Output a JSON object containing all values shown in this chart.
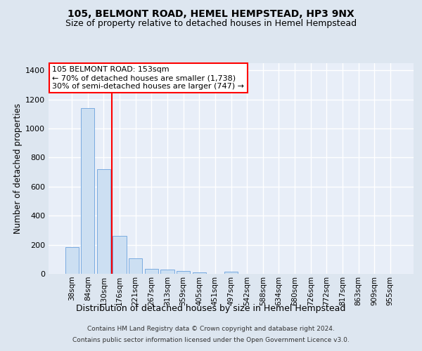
{
  "title1": "105, BELMONT ROAD, HEMEL HEMPSTEAD, HP3 9NX",
  "title2": "Size of property relative to detached houses in Hemel Hempstead",
  "xlabel": "Distribution of detached houses by size in Hemel Hempstead",
  "ylabel": "Number of detached properties",
  "footer1": "Contains HM Land Registry data © Crown copyright and database right 2024.",
  "footer2": "Contains public sector information licensed under the Open Government Licence v3.0.",
  "categories": [
    "38sqm",
    "84sqm",
    "130sqm",
    "176sqm",
    "221sqm",
    "267sqm",
    "313sqm",
    "359sqm",
    "405sqm",
    "451sqm",
    "497sqm",
    "542sqm",
    "588sqm",
    "634sqm",
    "680sqm",
    "726sqm",
    "772sqm",
    "817sqm",
    "863sqm",
    "909sqm",
    "955sqm"
  ],
  "values": [
    185,
    1140,
    720,
    260,
    105,
    32,
    28,
    18,
    10,
    0,
    13,
    0,
    0,
    0,
    0,
    0,
    0,
    0,
    0,
    0,
    0
  ],
  "bar_color": "#ccdff2",
  "bar_edge_color": "#7aabe0",
  "property_line_x": 2.5,
  "annotation_line1": "105 BELMONT ROAD: 153sqm",
  "annotation_line2": "← 70% of detached houses are smaller (1,738)",
  "annotation_line3": "30% of semi-detached houses are larger (747) →",
  "annotation_box_color": "white",
  "annotation_box_edge_color": "red",
  "vline_color": "red",
  "ylim": [
    0,
    1450
  ],
  "yticks": [
    0,
    200,
    400,
    600,
    800,
    1000,
    1200,
    1400
  ],
  "bg_color": "#dde6f0",
  "plot_bg_color": "#e8eef8",
  "grid_color": "white",
  "title1_fontsize": 10,
  "title2_fontsize": 9,
  "xlabel_fontsize": 9,
  "ylabel_fontsize": 8.5,
  "tick_fontsize": 8,
  "annot_fontsize": 8,
  "footer_fontsize": 6.5
}
